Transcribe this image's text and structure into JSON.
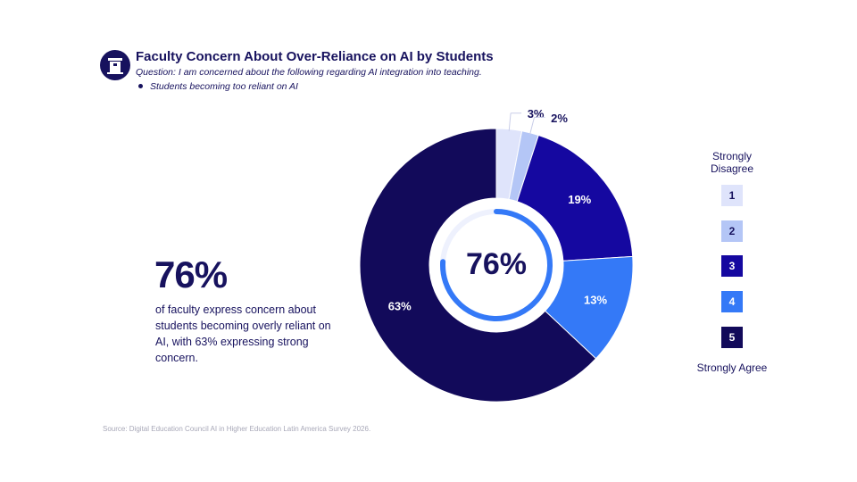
{
  "header": {
    "title": "Faculty Concern About Over-Reliance on AI by Students",
    "question": "Question: I am concerned about the following regarding AI integration into teaching.",
    "bullet": "Students becoming too reliant on AI",
    "logo_icon": "podium-icon"
  },
  "summary": {
    "big_stat": "76%",
    "description": "of faculty express concern about students becoming overly reliant on AI, with 63% expressing strong concern."
  },
  "source": "Source: Digital Education Council AI in Higher Education Latin America Survey 2026.",
  "legend": {
    "top_label": "Strongly Disagree",
    "bottom_label": "Strongly Agree",
    "items": [
      {
        "label": "1",
        "color": "#dfe4fb",
        "text_color": "#17125e"
      },
      {
        "label": "2",
        "color": "#b4c6f6",
        "text_color": "#17125e"
      },
      {
        "label": "3",
        "color": "#1508a0",
        "text_color": "#ffffff"
      },
      {
        "label": "4",
        "color": "#3479f7",
        "text_color": "#ffffff"
      },
      {
        "label": "5",
        "color": "#120a5a",
        "text_color": "#ffffff"
      }
    ]
  },
  "chart_data": {
    "type": "pie",
    "subtype": "donut",
    "title": "Faculty Concern About Over-Reliance on AI by Students",
    "categories": [
      "1",
      "2",
      "3",
      "4",
      "5"
    ],
    "values": [
      3,
      2,
      19,
      13,
      63
    ],
    "value_labels": [
      "3%",
      "2%",
      "19%",
      "13%",
      "63%"
    ],
    "colors": [
      "#dfe4fb",
      "#b4c6f6",
      "#1508a0",
      "#3479f7",
      "#120a5a"
    ],
    "center_label": "76%",
    "center_ring_value": 76,
    "center_ring_color": "#3479f7",
    "legend_position": "right"
  }
}
